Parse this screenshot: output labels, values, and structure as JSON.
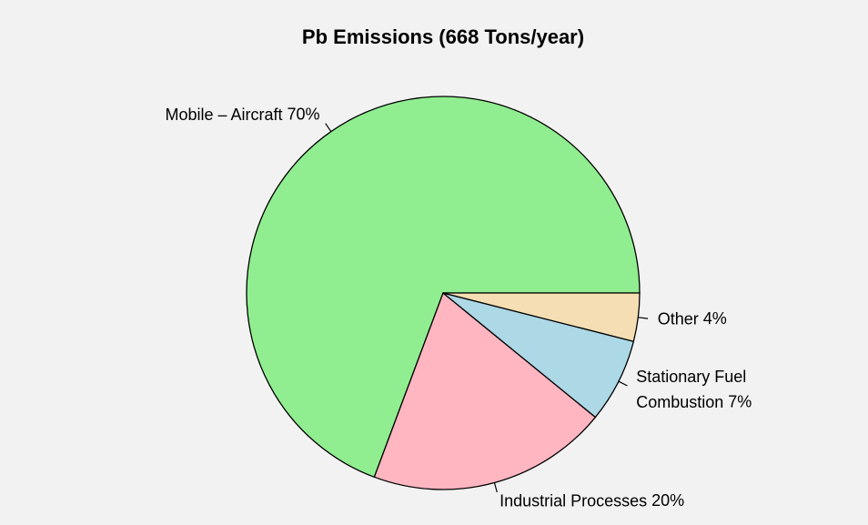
{
  "chart_data": {
    "type": "pie",
    "title": "Pb Emissions (668 Tons/year)",
    "categories": [
      "Mobile – Aircraft",
      "Industrial Processes",
      "Stationary Fuel Combustion",
      "Other"
    ],
    "values": [
      70,
      20,
      7,
      4
    ],
    "value_labels": [
      "70%",
      "20%",
      "7%",
      "4%"
    ],
    "colors": [
      "#90ee90",
      "#ffb6c1",
      "#add8e6",
      "#f5deb3"
    ]
  }
}
